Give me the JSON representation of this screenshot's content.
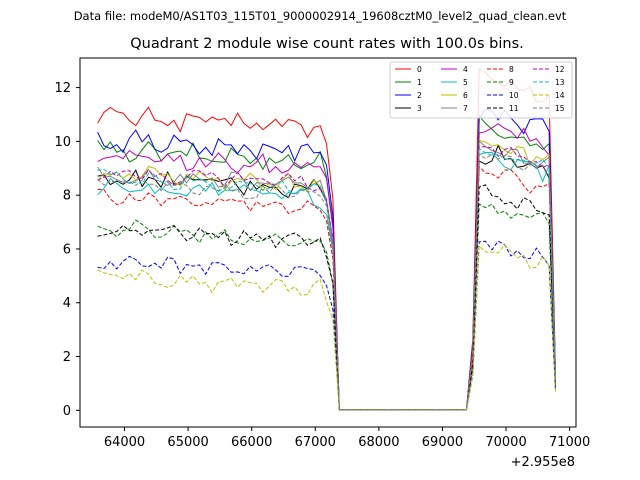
{
  "chart_data": {
    "type": "line",
    "suptitle": "Data file: modeM0/AS1T03_115T01_9000002914_19608cztM0_level2_quad_clean.evt",
    "title": "Quadrant 2 module wise count rates with 100.0s bins.",
    "xlabel": "",
    "ylabel": "",
    "x_offset_label": "+2.955e8",
    "xlim": [
      63300,
      71100
    ],
    "ylim": [
      -0.62,
      13.1
    ],
    "xticks": [
      64000,
      65000,
      66000,
      67000,
      68000,
      69000,
      70000,
      71000
    ],
    "xtick_labels": [
      "64000",
      "65000",
      "66000",
      "67000",
      "68000",
      "69000",
      "70000",
      "71000"
    ],
    "yticks": [
      0,
      2,
      4,
      6,
      8,
      10,
      12
    ],
    "ytick_labels": [
      "0",
      "2",
      "4",
      "6",
      "8",
      "10",
      "12"
    ],
    "grid": false,
    "legend_position": "top-right",
    "legend_columns": 4,
    "x_start": 63577,
    "x_step": 100,
    "segments": [
      {
        "first_index": 0,
        "count": 38
      },
      {
        "first_index": 59,
        "count": 14
      }
    ],
    "series": [
      {
        "name": "0",
        "color": "#ff0000",
        "dash": "solid",
        "base1": 10.5,
        "base2": 12.0,
        "amp": 0.3
      },
      {
        "name": "1",
        "color": "#008000",
        "dash": "solid",
        "base1": 9.2,
        "base2": 10.2,
        "amp": 0.3
      },
      {
        "name": "2",
        "color": "#0000ff",
        "dash": "solid",
        "base1": 9.6,
        "base2": 10.8,
        "amp": 0.3
      },
      {
        "name": "3",
        "color": "#000000",
        "dash": "solid",
        "base1": 8.2,
        "base2": 9.3,
        "amp": 0.3
      },
      {
        "name": "4",
        "color": "#bf00bf",
        "dash": "solid",
        "base1": 9.0,
        "base2": 10.3,
        "amp": 0.3
      },
      {
        "name": "5",
        "color": "#00bfbf",
        "dash": "solid",
        "base1": 7.9,
        "base2": 9.3,
        "amp": 0.3
      },
      {
        "name": "6",
        "color": "#bfbf00",
        "dash": "solid",
        "base1": 8.4,
        "base2": 9.6,
        "amp": 0.3
      },
      {
        "name": "7",
        "color": "#808080",
        "dash": "solid",
        "base1": 8.3,
        "base2": 9.5,
        "amp": 0.25
      },
      {
        "name": "8",
        "color": "#ff0000",
        "dash": "dashed",
        "base1": 7.5,
        "base2": 8.6,
        "amp": 0.25
      },
      {
        "name": "9",
        "color": "#008000",
        "dash": "dashed",
        "base1": 6.3,
        "base2": 7.3,
        "amp": 0.25
      },
      {
        "name": "10",
        "color": "#0000ff",
        "dash": "dashed",
        "base1": 5.0,
        "base2": 5.9,
        "amp": 0.25
      },
      {
        "name": "11",
        "color": "#000000",
        "dash": "dashed",
        "base1": 6.3,
        "base2": 7.8,
        "amp": 0.25
      },
      {
        "name": "12",
        "color": "#bf00bf",
        "dash": "dashed",
        "base1": 8.4,
        "base2": 9.6,
        "amp": 0.25
      },
      {
        "name": "13",
        "color": "#00bfbf",
        "dash": "dashed",
        "base1": 8.2,
        "base2": 9.4,
        "amp": 0.25
      },
      {
        "name": "14",
        "color": "#bfbf00",
        "dash": "dashed",
        "base1": 4.5,
        "base2": 5.8,
        "amp": 0.25
      },
      {
        "name": "15",
        "color": "#808080",
        "dash": "dashed",
        "base1": 8.0,
        "base2": 9.3,
        "amp": 0.25
      }
    ]
  }
}
